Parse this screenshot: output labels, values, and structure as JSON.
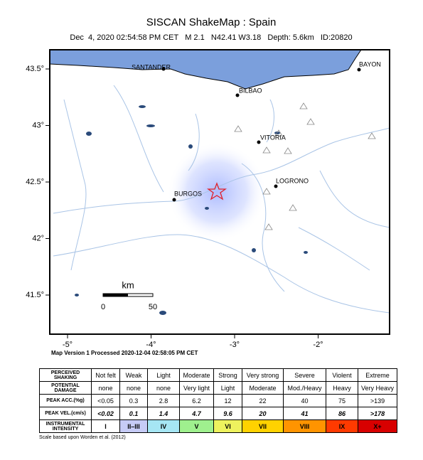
{
  "header": {
    "title": "SISCAN ShakeMap : Spain",
    "subtitle": "Dec  4, 2020 02:54:58 PM CET   M 2.1   N42.41 W3.18   Depth: 5.6km   ID:20820"
  },
  "map": {
    "lat_ticks": [
      {
        "value": 43.5,
        "label": "43.5°"
      },
      {
        "value": 43,
        "label": "43°"
      },
      {
        "value": 42.5,
        "label": "42.5°"
      },
      {
        "value": 42,
        "label": "42°"
      },
      {
        "value": 41.5,
        "label": "41.5°"
      }
    ],
    "lon_ticks": [
      {
        "value": -5,
        "label": "-5°"
      },
      {
        "value": -4,
        "label": "-4°"
      },
      {
        "value": -3,
        "label": "-3°"
      },
      {
        "value": -2,
        "label": "-2°"
      }
    ],
    "cities": [
      "SANTANDER",
      "BILBAO",
      "VITORIA",
      "LOGRONO",
      "BURGOS",
      "BAYON"
    ],
    "scale": {
      "unit": "km",
      "labels": [
        "0",
        "50"
      ]
    }
  },
  "processed": "Map Version 1 Processed 2020-12-04 02:58:05 PM CET",
  "table": {
    "rows": [
      [
        "PERCEIVED SHAKING",
        "Not felt",
        "Weak",
        "Light",
        "Moderate",
        "Strong",
        "Very strong",
        "Severe",
        "Violent",
        "Extreme"
      ],
      [
        "POTENTIAL DAMAGE",
        "none",
        "none",
        "none",
        "Very light",
        "Light",
        "Moderate",
        "Mod./Heavy",
        "Heavy",
        "Very Heavy"
      ],
      [
        "PEAK ACC.(%g)",
        "<0.05",
        "0.3",
        "2.8",
        "6.2",
        "12",
        "22",
        "40",
        "75",
        ">139"
      ],
      [
        "PEAK VEL.(cm/s)",
        "<0.02",
        "0.1",
        "1.4",
        "4.7",
        "9.6",
        "20",
        "41",
        "86",
        ">178"
      ],
      [
        "INSTRUMENTAL INTENSITY",
        "I",
        "II–III",
        "IV",
        "V",
        "VI",
        "VII",
        "VIII",
        "IX",
        "X+"
      ]
    ],
    "colors": [
      "#ffffff",
      "#c6cbf6",
      "#a6e6f4",
      "#9ff08e",
      "#eef25e",
      "#ffd200",
      "#ff9400",
      "#ff3a00",
      "#d80000"
    ]
  },
  "footer": "Scale based upon Worden et al. (2012)"
}
